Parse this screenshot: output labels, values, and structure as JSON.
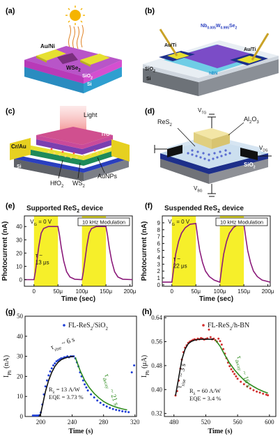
{
  "panels": {
    "a": {
      "label": "(a)",
      "electrode": "Au/Ni",
      "flake": "WSe",
      "flake_sub": "2",
      "oxide": "SiO",
      "oxide_sub": "2",
      "substrate": "Si"
    },
    "b": {
      "label": "(b)",
      "flake": "Nb",
      "flake_parts": [
        "0.005",
        "W",
        "0.995",
        "Se",
        "2"
      ],
      "electrode_left": "Au/Ti",
      "electrode_right": "Au/Ti",
      "oxide": "SiO",
      "oxide_sub": "2",
      "substrate": "Si",
      "hbn": "hBN"
    },
    "c": {
      "label": "(c)",
      "light": "Light",
      "ito": "ITO",
      "electrode": "Cr/Au",
      "hfo2": "HfO",
      "hfo2_sub": "2",
      "ws2": "WS",
      "ws2_sub": "2",
      "aunps": "AuNPs",
      "substrate": "Si"
    },
    "d": {
      "label": "(d)",
      "flake": "ReS",
      "flake_sub": "2",
      "dielectric": "Al",
      "dielectric_parts": [
        "2",
        "O",
        "3"
      ],
      "vtg": "V",
      "vtg_sub": "TG",
      "vds": "V",
      "vds_sub": "DS",
      "vbg": "V",
      "vbg_sub": "BG",
      "oxide": "SiO",
      "oxide_sub": "2",
      "substrate": "Si"
    },
    "e": {
      "label": "(e)",
      "title": "Supported ReS",
      "title_sub": "2",
      "title_tail": " device",
      "gate": "V",
      "gate_sub": "G",
      "gate_tail": " = 0 V",
      "modulation": "10 kHz Modulation",
      "tau": "τ ~",
      "tau_value": "13 μs"
    },
    "f": {
      "label": "(f)",
      "title": "Suspended ReS",
      "title_sub": "2",
      "title_tail": " device",
      "gate": "V",
      "gate_sub": "G",
      "gate_tail": " = 0 V",
      "modulation": "10 kHz Modulation",
      "tau": "τ ~",
      "tau_value": "22 μs"
    },
    "g": {
      "label": "(g)",
      "legend": "FL-ReS",
      "legend_sub": "2",
      "legend_tail": "/SiO",
      "legend_sub2": "2",
      "tau_rise": "τ",
      "tau_rise_sub": "rise",
      "tau_rise_tail": " ~ 6 s",
      "tau_decay": "τ",
      "tau_decay_sub": "decay",
      "tau_decay_tail": " ~ 21 s",
      "resp": "R",
      "resp_sub": "λ",
      "resp_tail": " = 13 A/W",
      "eqe": "EQE = 3.73 %"
    },
    "h": {
      "label": "(h)",
      "legend": "FL-ReS",
      "legend_sub": "2",
      "legend_tail": "/h-BN",
      "tau_rise": "τ",
      "tau_rise_sub": "rise",
      "tau_rise_tail": " ~ 3 s",
      "tau_decay": "τ",
      "tau_decay_sub": "decay",
      "tau_decay_tail": " ~ 16 s",
      "resp": "R",
      "resp_sub": "λ",
      "resp_tail": " = 60 A/W",
      "eqe": "EQE = 3.4 %"
    }
  },
  "chart_data": [
    {
      "type": "line",
      "panel": "e",
      "xlabel": "Time (sec)",
      "ylabel": "Photocurrent (nA)",
      "xticks": [
        "0",
        "50μ",
        "100μ",
        "150μ",
        "200μ"
      ],
      "xlim": [
        -20,
        205
      ],
      "yticks": [
        "0",
        "10",
        "20",
        "30",
        "40"
      ],
      "ylim": [
        -5,
        48
      ],
      "on_intervals": [
        [
          0,
          50
        ],
        [
          100,
          150
        ]
      ],
      "series": [
        {
          "color": "#8b1a7a",
          "x": [
            -20,
            0,
            3,
            6,
            10,
            15,
            20,
            30,
            50,
            53,
            57,
            62,
            68,
            75,
            85,
            100,
            103,
            106,
            110,
            115,
            120,
            130,
            150,
            153,
            157,
            162,
            168,
            175,
            185,
            205
          ],
          "values": [
            0,
            0,
            6,
            14,
            25,
            35,
            38.5,
            40,
            40,
            34,
            24,
            14,
            6,
            2,
            0.3,
            0,
            6,
            14,
            25,
            35,
            38.5,
            40,
            40,
            34,
            24,
            14,
            6,
            2,
            0.3,
            0
          ]
        }
      ]
    },
    {
      "type": "line",
      "panel": "f",
      "xlabel": "Time (sec)",
      "ylabel": "Photocurrent (nA)",
      "xticks": [
        "0",
        "50μ",
        "100μ",
        "150μ",
        "200μ"
      ],
      "xlim": [
        -20,
        205
      ],
      "yticks": [
        "0",
        "1",
        "2",
        "3",
        "4",
        "5",
        "6",
        "7",
        "8",
        "9"
      ],
      "ylim": [
        -0.2,
        10
      ],
      "on_intervals": [
        [
          0,
          50
        ],
        [
          100,
          150
        ]
      ],
      "series": [
        {
          "color": "#8b1a7a",
          "x": [
            -20,
            0,
            4,
            8,
            14,
            20,
            28,
            38,
            50,
            54,
            58,
            64,
            70,
            78,
            88,
            100,
            104,
            108,
            114,
            120,
            128,
            138,
            150,
            154,
            158,
            164,
            170,
            178,
            188,
            205
          ],
          "values": [
            0.4,
            0.4,
            2.5,
            4.5,
            6.3,
            7.5,
            8.3,
            8.8,
            8.9,
            6.8,
            5.0,
            3.2,
            2.0,
            1.2,
            0.7,
            0.4,
            2.5,
            4.5,
            6.3,
            7.5,
            8.3,
            8.8,
            8.9,
            6.8,
            5.0,
            3.2,
            2.0,
            1.2,
            0.7,
            0.4
          ]
        }
      ]
    },
    {
      "type": "scatter",
      "panel": "g",
      "xlabel": "Time (s)",
      "ylabel": "I",
      "ylabel_sub": "Ph",
      "ylabel_unit": " (nA)",
      "xticks": [
        "200",
        "240",
        "280",
        "320"
      ],
      "xlim": [
        180,
        322
      ],
      "yticks": [
        "0",
        "10",
        "20",
        "30",
        "40",
        "50"
      ],
      "ylim": [
        0,
        50
      ],
      "series": [
        {
          "name": "FL-ReS2/SiO2",
          "color": "#1f3fd6",
          "x": [
            190,
            192,
            194,
            196,
            198,
            200,
            202,
            204,
            206,
            208,
            210,
            212,
            214,
            216,
            218,
            220,
            222,
            224,
            226,
            228,
            230,
            232,
            234,
            236,
            238,
            240,
            242,
            244,
            246,
            248,
            250,
            252,
            254,
            256,
            258,
            260,
            264,
            268,
            272,
            276,
            280,
            284,
            288,
            292,
            296,
            300,
            304,
            308,
            312,
            316,
            319
          ],
          "values": [
            0.5,
            0.5,
            0.5,
            0.5,
            0.6,
            2,
            6,
            11,
            15,
            18,
            20.5,
            22.5,
            24,
            25.5,
            26.5,
            27.5,
            28,
            28.5,
            29,
            29,
            29.5,
            29.5,
            30,
            29.5,
            30,
            30,
            30,
            29,
            27,
            25,
            22,
            20,
            18,
            16,
            14.5,
            13,
            11,
            9.5,
            8,
            6.8,
            5.8,
            5,
            4.3,
            3.7,
            3.3,
            3,
            2.6,
            2.4,
            2.2,
            22,
            25.5
          ]
        },
        {
          "name": "rise fit",
          "color": "#111111",
          "x": [
            198,
            200,
            203,
            206,
            210,
            214,
            218,
            222,
            226,
            230,
            234,
            238,
            242
          ],
          "values": [
            0,
            1.5,
            7,
            12.5,
            18,
            22,
            25,
            27,
            28.3,
            29,
            29.5,
            29.8,
            30
          ]
        },
        {
          "name": "decay fit",
          "color": "#2e8b1e",
          "x": [
            244,
            250,
            256,
            262,
            268,
            274,
            280,
            286,
            292,
            298,
            304,
            310
          ],
          "values": [
            29.5,
            23,
            18,
            14.3,
            11.5,
            9.3,
            7.5,
            6.2,
            5.2,
            4.4,
            3.8,
            3.3
          ]
        }
      ]
    },
    {
      "type": "scatter",
      "panel": "h",
      "xlabel": "Time (s)",
      "ylabel": "I",
      "ylabel_sub": "Ph",
      "ylabel_unit": " (μA)",
      "xticks": [
        "480",
        "520",
        "560",
        "600"
      ],
      "xlim": [
        468,
        608
      ],
      "yticks": [
        "0.32",
        "0.40",
        "0.48",
        "0.56",
        "0.64"
      ],
      "ylim": [
        0.31,
        0.645
      ],
      "series": [
        {
          "name": "FL-ReS2/h-BN",
          "color": "#d32f2f",
          "x": [
            482,
            484,
            486,
            488,
            490,
            492,
            494,
            496,
            498,
            500,
            502,
            504,
            506,
            508,
            510,
            512,
            514,
            516,
            518,
            520,
            522,
            524,
            526,
            528,
            530,
            532,
            534,
            536,
            538,
            540,
            542,
            544,
            546,
            548,
            550,
            552,
            554,
            556,
            558,
            560,
            564,
            568,
            572,
            576,
            580,
            584,
            588,
            592,
            596,
            598
          ],
          "values": [
            0.38,
            0.395,
            0.43,
            0.47,
            0.5,
            0.525,
            0.54,
            0.548,
            0.556,
            0.56,
            0.563,
            0.566,
            0.568,
            0.566,
            0.57,
            0.568,
            0.572,
            0.57,
            0.567,
            0.569,
            0.571,
            0.6,
            0.575,
            0.568,
            0.57,
            0.565,
            0.56,
            0.57,
            0.562,
            0.55,
            0.535,
            0.52,
            0.505,
            0.49,
            0.478,
            0.468,
            0.46,
            0.452,
            0.444,
            0.436,
            0.426,
            0.418,
            0.41,
            0.404,
            0.398,
            0.393,
            0.39,
            0.386,
            0.383,
            0.381
          ]
        },
        {
          "name": "rise fit",
          "color": "#111111",
          "x": [
            482,
            486,
            490,
            494,
            498,
            502,
            506,
            510,
            514,
            518,
            522,
            526,
            530
          ],
          "values": [
            0.38,
            0.44,
            0.5,
            0.535,
            0.553,
            0.561,
            0.565,
            0.567,
            0.568,
            0.568,
            0.568,
            0.568,
            0.568
          ]
        },
        {
          "name": "decay fit",
          "color": "#2e8b1e",
          "x": [
            532,
            538,
            544,
            550,
            556,
            562,
            568,
            574,
            580,
            586,
            592,
            598
          ],
          "values": [
            0.566,
            0.545,
            0.515,
            0.488,
            0.466,
            0.448,
            0.432,
            0.42,
            0.41,
            0.401,
            0.394,
            0.388
          ]
        }
      ]
    }
  ]
}
